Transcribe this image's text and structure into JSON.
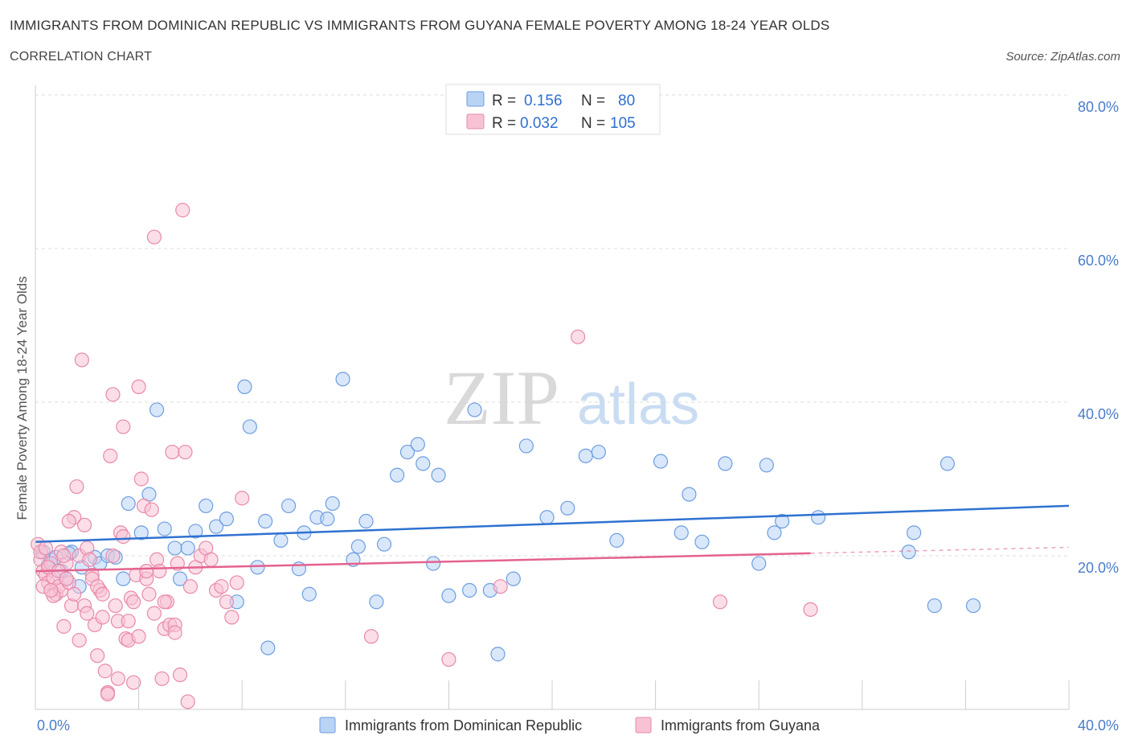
{
  "header": {
    "title": "IMMIGRANTS FROM DOMINICAN REPUBLIC VS IMMIGRANTS FROM GUYANA FEMALE POVERTY AMONG 18-24 YEAR OLDS",
    "subtitle": "CORRELATION CHART",
    "source": "Source: ZipAtlas.com"
  },
  "watermark": {
    "zip": "ZIP",
    "atlas": "atlas"
  },
  "colors": {
    "blue_fill": "#b9d3f5",
    "blue_stroke": "#6d9ee0",
    "blue_line": "#2f72d0",
    "pink_fill": "#f7c3d4",
    "pink_stroke": "#e889aa",
    "pink_line": "#e4628f",
    "grid": "#dddddd",
    "axis_label": "#4a7cc9"
  },
  "legend": {
    "rows": [
      {
        "r_label": "R =",
        "r_value": "0.156",
        "n_label": "N =",
        "n_value": "80"
      },
      {
        "r_label": "R =",
        "r_value": "0.032",
        "n_label": "N =",
        "n_value": "105"
      }
    ]
  },
  "chart_data": {
    "type": "scatter",
    "xlabel": "",
    "ylabel": "Female Poverty Among 18-24 Year Olds",
    "xlim": [
      0,
      40
    ],
    "ylim": [
      0,
      80
    ],
    "x_tick_labels": [
      "0.0%",
      "40.0%"
    ],
    "y_tick_labels": [
      "20.0%",
      "40.0%",
      "60.0%",
      "80.0%"
    ],
    "y_tick_values": [
      20,
      40,
      60,
      80
    ],
    "grid": true,
    "legend_position": "bottom-center",
    "series": [
      {
        "name": "Immigrants from Dominican Republic",
        "trend": {
          "x": [
            0,
            40
          ],
          "y": [
            21.8,
            26.5
          ],
          "solid_until": 40
        },
        "points": [
          [
            0.3,
            20.5
          ],
          [
            0.5,
            18.8
          ],
          [
            0.6,
            19.5
          ],
          [
            0.8,
            19.8
          ],
          [
            1.0,
            18.0
          ],
          [
            1.2,
            17.0
          ],
          [
            1.4,
            20.5
          ],
          [
            1.7,
            16.0
          ],
          [
            1.8,
            18.5
          ],
          [
            2.3,
            19.8
          ],
          [
            2.5,
            19.0
          ],
          [
            2.8,
            20.0
          ],
          [
            3.1,
            19.8
          ],
          [
            3.4,
            17.0
          ],
          [
            3.6,
            26.8
          ],
          [
            4.1,
            23.0
          ],
          [
            4.4,
            28.0
          ],
          [
            4.7,
            39.0
          ],
          [
            5.0,
            23.5
          ],
          [
            5.4,
            21.0
          ],
          [
            5.6,
            17.0
          ],
          [
            5.9,
            21.0
          ],
          [
            6.2,
            23.2
          ],
          [
            6.6,
            26.5
          ],
          [
            7.0,
            23.8
          ],
          [
            7.4,
            24.8
          ],
          [
            7.8,
            14.0
          ],
          [
            8.1,
            42.0
          ],
          [
            8.3,
            36.8
          ],
          [
            8.6,
            18.5
          ],
          [
            8.9,
            24.5
          ],
          [
            9.0,
            8.0
          ],
          [
            9.5,
            22.0
          ],
          [
            9.8,
            26.5
          ],
          [
            10.2,
            18.3
          ],
          [
            10.4,
            23.0
          ],
          [
            10.6,
            15.0
          ],
          [
            10.9,
            25.0
          ],
          [
            11.3,
            24.8
          ],
          [
            11.5,
            26.8
          ],
          [
            11.9,
            43.0
          ],
          [
            12.3,
            19.5
          ],
          [
            12.5,
            21.2
          ],
          [
            12.8,
            24.5
          ],
          [
            13.2,
            14.0
          ],
          [
            13.5,
            21.5
          ],
          [
            14.0,
            30.5
          ],
          [
            14.4,
            33.5
          ],
          [
            14.8,
            34.5
          ],
          [
            15.0,
            32.0
          ],
          [
            15.4,
            19.0
          ],
          [
            15.6,
            30.5
          ],
          [
            16.0,
            14.8
          ],
          [
            16.8,
            15.5
          ],
          [
            17.0,
            39.0
          ],
          [
            17.6,
            15.5
          ],
          [
            17.9,
            7.2
          ],
          [
            18.5,
            17.0
          ],
          [
            19.0,
            34.3
          ],
          [
            19.8,
            25.0
          ],
          [
            20.6,
            26.2
          ],
          [
            21.3,
            33.0
          ],
          [
            21.8,
            33.5
          ],
          [
            22.5,
            22.0
          ],
          [
            24.2,
            32.3
          ],
          [
            25.0,
            23.0
          ],
          [
            25.3,
            28.0
          ],
          [
            25.8,
            21.8
          ],
          [
            26.7,
            32.0
          ],
          [
            28.0,
            19.0
          ],
          [
            28.3,
            31.8
          ],
          [
            28.6,
            23.0
          ],
          [
            28.9,
            24.5
          ],
          [
            30.3,
            25.0
          ],
          [
            33.8,
            20.5
          ],
          [
            34.0,
            23.0
          ],
          [
            34.8,
            13.5
          ],
          [
            35.3,
            32.0
          ],
          [
            36.3,
            13.5
          ],
          [
            1.3,
            20.3
          ]
        ]
      },
      {
        "name": "Immigrants from Guyana",
        "trend": {
          "x": [
            0,
            30,
            40
          ],
          "y": [
            18.0,
            20.3,
            21.1
          ],
          "solid_until": 30
        },
        "points": [
          [
            0.1,
            21.5
          ],
          [
            0.2,
            19.5
          ],
          [
            0.3,
            18.0
          ],
          [
            0.4,
            17.5
          ],
          [
            0.5,
            16.5
          ],
          [
            0.6,
            19.0
          ],
          [
            0.7,
            17.2
          ],
          [
            0.8,
            15.0
          ],
          [
            0.9,
            16.0
          ],
          [
            1.0,
            15.5
          ],
          [
            1.1,
            10.8
          ],
          [
            1.2,
            19.0
          ],
          [
            1.3,
            16.5
          ],
          [
            1.4,
            13.5
          ],
          [
            1.5,
            25.0
          ],
          [
            1.6,
            29.0
          ],
          [
            1.7,
            20.0
          ],
          [
            1.8,
            45.5
          ],
          [
            1.9,
            13.5
          ],
          [
            2.0,
            21.0
          ],
          [
            2.1,
            19.5
          ],
          [
            2.2,
            17.5
          ],
          [
            2.3,
            11.0
          ],
          [
            2.4,
            7.0
          ],
          [
            2.5,
            15.5
          ],
          [
            2.6,
            12.0
          ],
          [
            2.7,
            5.0
          ],
          [
            2.8,
            2.2
          ],
          [
            2.9,
            33.0
          ],
          [
            3.0,
            20.0
          ],
          [
            3.1,
            13.5
          ],
          [
            3.2,
            11.5
          ],
          [
            3.3,
            23.0
          ],
          [
            3.4,
            22.5
          ],
          [
            3.5,
            9.2
          ],
          [
            3.6,
            11.5
          ],
          [
            3.7,
            14.5
          ],
          [
            3.8,
            3.5
          ],
          [
            3.9,
            17.5
          ],
          [
            4.0,
            42.0
          ],
          [
            4.1,
            30.0
          ],
          [
            4.2,
            26.5
          ],
          [
            4.3,
            17.0
          ],
          [
            4.4,
            15.0
          ],
          [
            4.5,
            26.0
          ],
          [
            4.6,
            61.5
          ],
          [
            4.7,
            19.5
          ],
          [
            4.8,
            18.0
          ],
          [
            4.9,
            4.0
          ],
          [
            5.0,
            10.5
          ],
          [
            5.1,
            14.0
          ],
          [
            5.2,
            11.0
          ],
          [
            5.3,
            33.5
          ],
          [
            5.4,
            11.0
          ],
          [
            5.5,
            19.0
          ],
          [
            5.6,
            4.5
          ],
          [
            5.7,
            65.0
          ],
          [
            5.8,
            33.5
          ],
          [
            5.9,
            1.0
          ],
          [
            6.0,
            16.0
          ],
          [
            6.2,
            18.5
          ],
          [
            6.4,
            20.0
          ],
          [
            6.6,
            21.0
          ],
          [
            6.8,
            19.5
          ],
          [
            7.0,
            15.5
          ],
          [
            7.2,
            16.0
          ],
          [
            7.4,
            14.0
          ],
          [
            7.6,
            12.0
          ],
          [
            7.8,
            16.5
          ],
          [
            8.0,
            27.5
          ],
          [
            0.2,
            20.5
          ],
          [
            0.3,
            16.0
          ],
          [
            0.4,
            21.0
          ],
          [
            0.5,
            18.5
          ],
          [
            0.7,
            14.8
          ],
          [
            0.9,
            18.0
          ],
          [
            1.0,
            20.5
          ],
          [
            1.2,
            17.0
          ],
          [
            1.3,
            24.5
          ],
          [
            1.5,
            15.0
          ],
          [
            1.7,
            9.0
          ],
          [
            1.9,
            24.0
          ],
          [
            2.0,
            12.5
          ],
          [
            2.2,
            17.0
          ],
          [
            2.4,
            16.0
          ],
          [
            2.6,
            15.0
          ],
          [
            2.8,
            2.0
          ],
          [
            3.0,
            41.0
          ],
          [
            3.2,
            4.0
          ],
          [
            3.4,
            36.8
          ],
          [
            3.6,
            9.0
          ],
          [
            3.8,
            14.0
          ],
          [
            4.0,
            9.5
          ],
          [
            4.3,
            18.0
          ],
          [
            4.6,
            12.5
          ],
          [
            5.0,
            14.0
          ],
          [
            5.4,
            10.0
          ],
          [
            13.0,
            9.5
          ],
          [
            16.0,
            6.5
          ],
          [
            18.0,
            16.0
          ],
          [
            21.0,
            48.5
          ],
          [
            26.5,
            14.0
          ],
          [
            30.0,
            13.0
          ],
          [
            1.1,
            20.0
          ],
          [
            0.6,
            15.5
          ]
        ]
      }
    ]
  }
}
